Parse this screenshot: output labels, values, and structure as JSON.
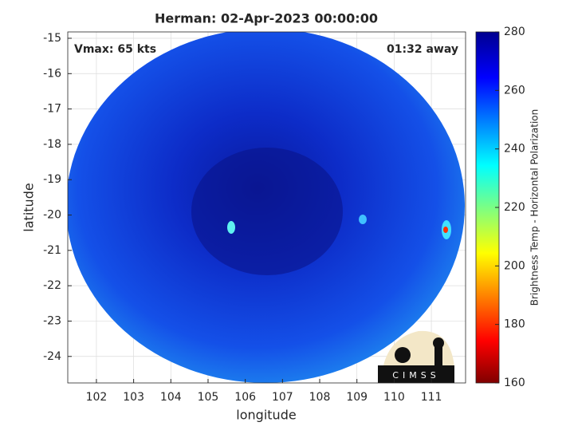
{
  "chart_data": {
    "type": "image",
    "title": "Herman: 02-Apr-2023 00:00:00",
    "annotations": [
      "Vmax: 65 kts",
      "01:32 away"
    ],
    "xlabel": "longitude",
    "ylabel": "latitude",
    "xlim": [
      101.23,
      111.92
    ],
    "xticks": [
      102,
      103,
      104,
      105,
      106,
      107,
      108,
      109,
      110,
      111
    ],
    "ylim": [
      -24.75,
      -14.82
    ],
    "yticks": [
      -15,
      -16,
      -17,
      -18,
      -19,
      -20,
      -21,
      -22,
      -23,
      -24
    ],
    "grid": true,
    "colorbar": {
      "label": "Brightness Temp - Horizontal Polarization",
      "lim": [
        160,
        280
      ],
      "ticks": [
        160,
        180,
        200,
        220,
        240,
        260,
        280
      ]
    },
    "logo_text": "CIMSS"
  }
}
